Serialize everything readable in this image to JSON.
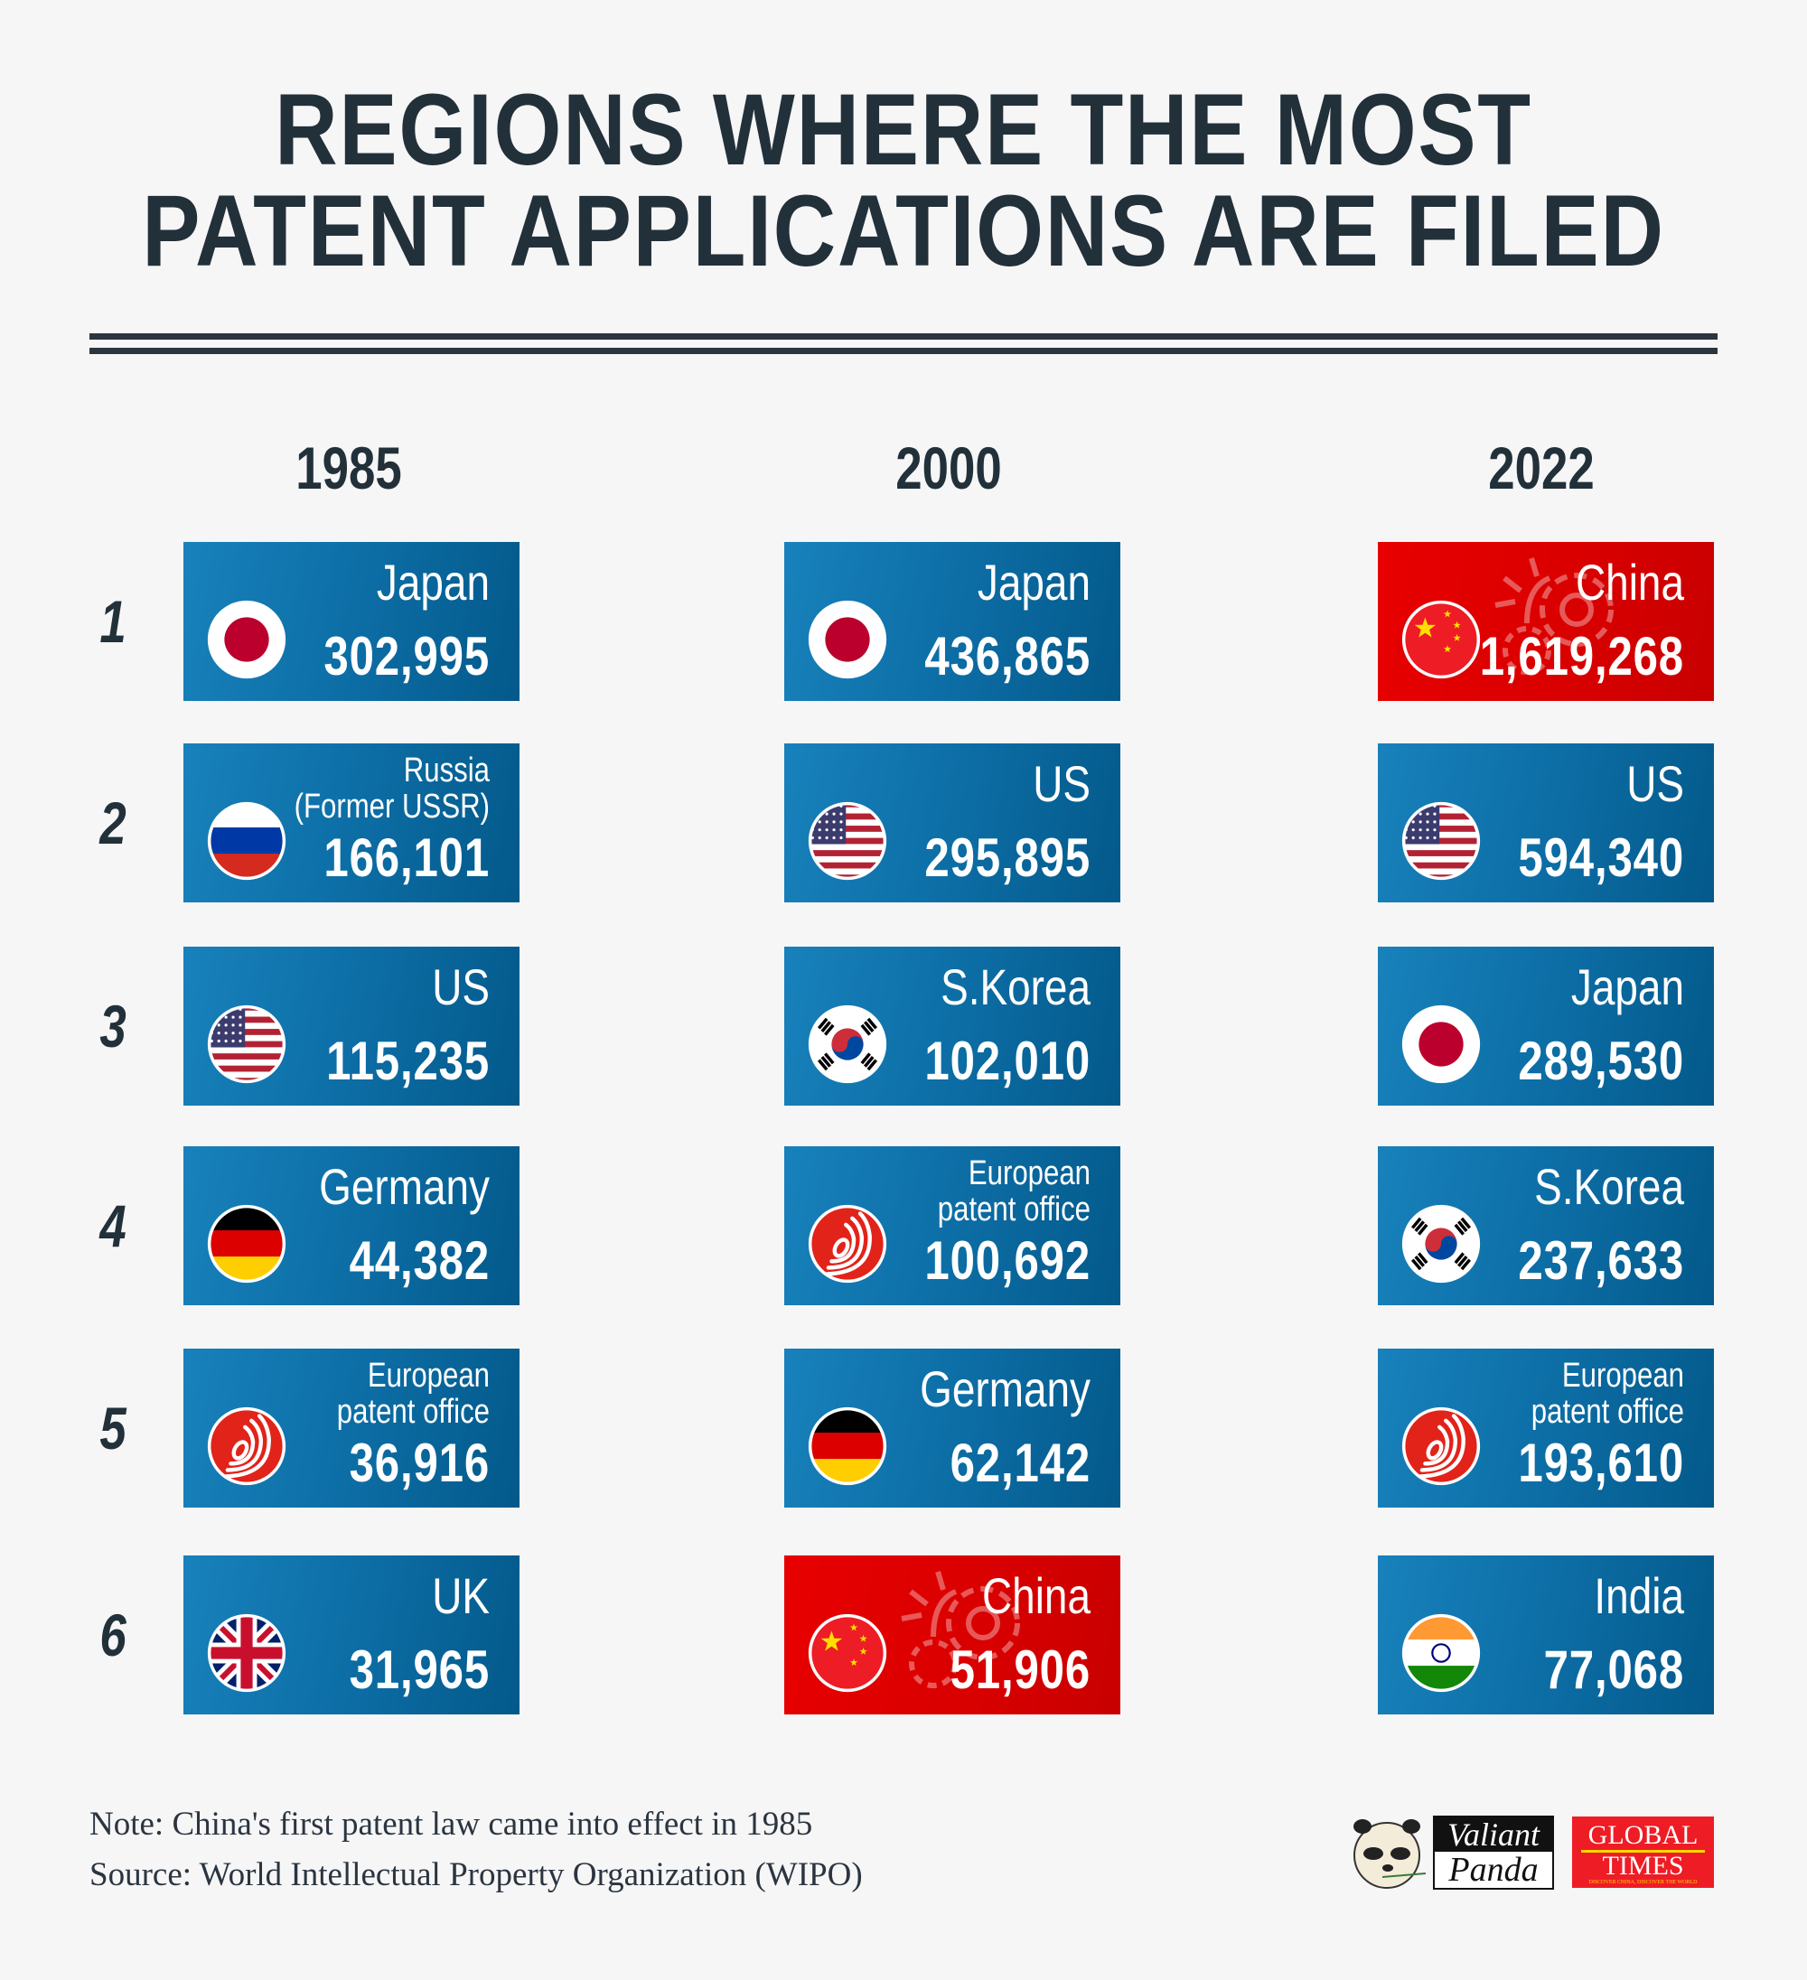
{
  "title": {
    "line1": "REGIONS WHERE THE MOST",
    "line2": "PATENT APPLICATIONS ARE FILED"
  },
  "ranks": [
    "1",
    "2",
    "3",
    "4",
    "5",
    "6"
  ],
  "columns": [
    {
      "year": "1985",
      "entries": [
        {
          "name": "Japan",
          "value": "302,995",
          "flag": "japan"
        },
        {
          "name": "Russia\n(Former USSR)",
          "value": "166,101",
          "flag": "russia"
        },
        {
          "name": "US",
          "value": "115,235",
          "flag": "us"
        },
        {
          "name": "Germany",
          "value": "44,382",
          "flag": "germany"
        },
        {
          "name": "European\npatent office",
          "value": "36,916",
          "flag": "epo"
        },
        {
          "name": "UK",
          "value": "31,965",
          "flag": "uk"
        }
      ]
    },
    {
      "year": "2000",
      "entries": [
        {
          "name": "Japan",
          "value": "436,865",
          "flag": "japan"
        },
        {
          "name": "US",
          "value": "295,895",
          "flag": "us"
        },
        {
          "name": "S.Korea",
          "value": "102,010",
          "flag": "korea"
        },
        {
          "name": "European\npatent office",
          "value": "100,692",
          "flag": "epo"
        },
        {
          "name": "Germany",
          "value": "62,142",
          "flag": "germany"
        },
        {
          "name": "China",
          "value": "51,906",
          "flag": "china",
          "highlight": true
        }
      ]
    },
    {
      "year": "2022",
      "entries": [
        {
          "name": "China",
          "value": "1,619,268",
          "flag": "china",
          "highlight": true
        },
        {
          "name": "US",
          "value": "594,340",
          "flag": "us"
        },
        {
          "name": "Japan",
          "value": "289,530",
          "flag": "japan"
        },
        {
          "name": "S.Korea",
          "value": "237,633",
          "flag": "korea"
        },
        {
          "name": "European\npatent office",
          "value": "193,610",
          "flag": "epo"
        },
        {
          "name": "India",
          "value": "77,068",
          "flag": "india"
        }
      ]
    }
  ],
  "colors": {
    "card_blue": "#0d6ea6",
    "card_red": "#d80000",
    "text_dark": "#22303a",
    "background": "#f6f6f6"
  },
  "footer": {
    "note": "Note: China's first patent law came into effect in 1985",
    "source": "Source: World Intellectual Property Organization (WIPO)"
  },
  "logos": {
    "panda_line1": "Valiant",
    "panda_line2": "Panda",
    "gt_line1": "GLOBAL",
    "gt_line2": "TIMES",
    "gt_tagline": "DISCOVER CHINA, DISCOVER THE WORLD"
  }
}
